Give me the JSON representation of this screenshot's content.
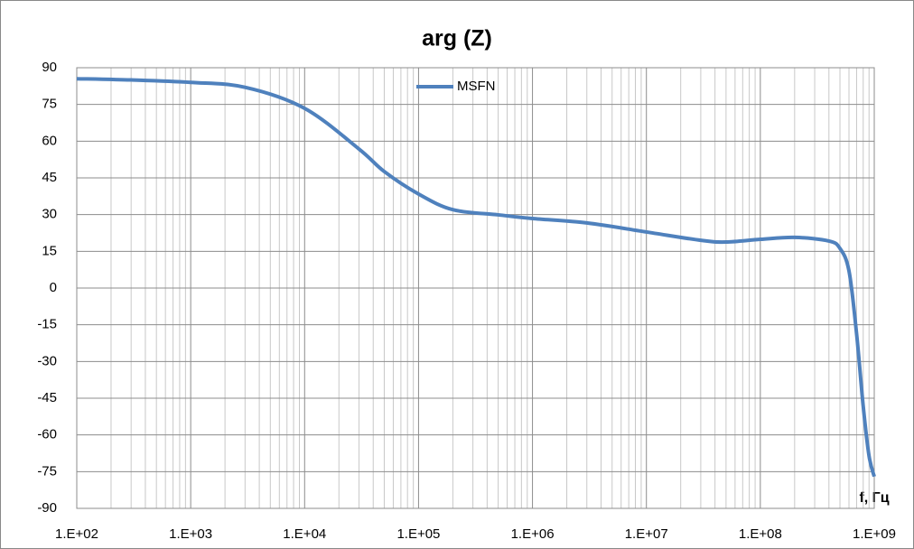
{
  "chart_data": {
    "type": "line",
    "title": "arg (Z)",
    "x_label": "f, Гц",
    "x": [
      100,
      300,
      1000,
      3000,
      10000,
      30000,
      50000,
      100000,
      200000,
      500000,
      1000000,
      3000000,
      10000000,
      30000000,
      50000000,
      100000000,
      200000000,
      400000000,
      500000000,
      600000000,
      700000000,
      800000000,
      900000000,
      1000000000
    ],
    "series": [
      {
        "name": "MSFN",
        "color": "#4f81bd",
        "values": [
          85.5,
          85,
          84,
          82,
          73.4,
          56.8,
          47.6,
          38.4,
          32,
          29.9,
          28.4,
          26.6,
          22.9,
          19.5,
          18.8,
          19.9,
          20.7,
          19.2,
          16.2,
          7,
          -18.8,
          -48.3,
          -68.6,
          -77
        ]
      }
    ],
    "xlim": [
      100,
      1000000000
    ],
    "x_log": true,
    "xticks": [
      {
        "value": 100,
        "label": "1.E+02"
      },
      {
        "value": 1000,
        "label": "1.E+03"
      },
      {
        "value": 10000,
        "label": "1.E+04"
      },
      {
        "value": 100000,
        "label": "1.E+05"
      },
      {
        "value": 1000000,
        "label": "1.E+06"
      },
      {
        "value": 10000000,
        "label": "1.E+07"
      },
      {
        "value": 100000000,
        "label": "1.E+08"
      },
      {
        "value": 1000000000,
        "label": "1.E+09"
      }
    ],
    "ylim": [
      -90,
      90
    ],
    "yticks": [
      90,
      75,
      60,
      45,
      30,
      15,
      0,
      -15,
      -30,
      -45,
      -60,
      -75,
      -90
    ],
    "grid": true,
    "minor_grid": true,
    "legend": "top"
  }
}
